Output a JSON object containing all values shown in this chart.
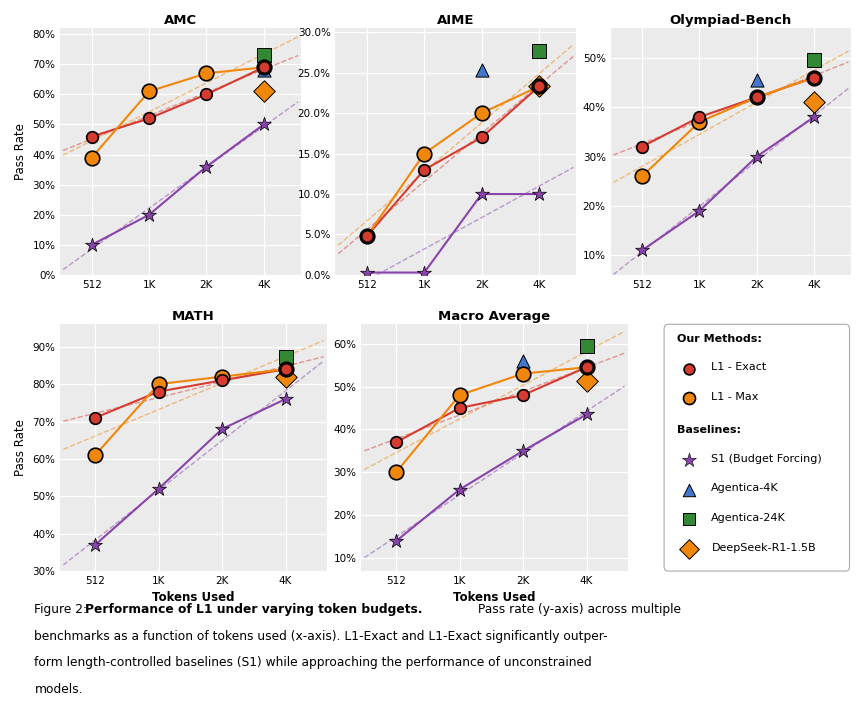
{
  "x_ticks": [
    512,
    1024,
    2048,
    4096
  ],
  "x_labels": [
    "512",
    "1K",
    "2K",
    "4K"
  ],
  "subplots": [
    {
      "title": "AMC",
      "ylabel": "Pass Rate",
      "xlabel": "",
      "ylim": [
        0.0,
        0.82
      ],
      "yticks": [
        0.0,
        0.1,
        0.2,
        0.3,
        0.4,
        0.5,
        0.6,
        0.7,
        0.8
      ],
      "ytick_labels": [
        "0%",
        "10%",
        "20%",
        "30%",
        "40%",
        "50%",
        "60%",
        "70%",
        "80%"
      ],
      "l1_exact": {
        "x": [
          512,
          1024,
          2048,
          4096
        ],
        "y": [
          0.46,
          0.52,
          0.6,
          0.69
        ]
      },
      "l1_max": {
        "x": [
          512,
          1024,
          2048,
          4096
        ],
        "y": [
          0.39,
          0.61,
          0.67,
          0.69
        ]
      },
      "s1": {
        "x": [
          512,
          1024,
          2048,
          4096
        ],
        "y": [
          0.1,
          0.2,
          0.36,
          0.5
        ]
      },
      "agentica_4k": {
        "x": [
          4096
        ],
        "y": [
          0.68
        ],
        "show": true
      },
      "agentica_24k": {
        "x": [
          4096
        ],
        "y": [
          0.73
        ],
        "show": true
      },
      "deepseek": {
        "x": [
          4096
        ],
        "y": [
          0.61
        ],
        "show": true
      }
    },
    {
      "title": "AIME",
      "ylabel": "",
      "xlabel": "",
      "ylim": [
        0.0,
        0.305
      ],
      "yticks": [
        0.0,
        0.05,
        0.1,
        0.15,
        0.2,
        0.25,
        0.3
      ],
      "ytick_labels": [
        "0.0%",
        "5.0%",
        "10.0%",
        "15.0%",
        "20.0%",
        "25.0%",
        "30.0%"
      ],
      "l1_exact": {
        "x": [
          512,
          1024,
          2048,
          4096
        ],
        "y": [
          0.048,
          0.13,
          0.17,
          0.233
        ]
      },
      "l1_max": {
        "x": [
          512,
          1024,
          2048,
          4096
        ],
        "y": [
          0.048,
          0.15,
          0.2,
          0.233
        ]
      },
      "s1": {
        "x": [
          512,
          1024,
          2048,
          4096
        ],
        "y": [
          0.003,
          0.003,
          0.1,
          0.1
        ]
      },
      "agentica_4k": {
        "x": [
          2048
        ],
        "y": [
          0.253
        ],
        "show": true
      },
      "agentica_24k": {
        "x": [
          4096
        ],
        "y": [
          0.277
        ],
        "show": true
      },
      "deepseek": {
        "x": [
          4096
        ],
        "y": [
          0.233
        ],
        "show": true
      }
    },
    {
      "title": "Olympiad-Bench",
      "ylabel": "",
      "xlabel": "",
      "ylim": [
        0.06,
        0.56
      ],
      "yticks": [
        0.1,
        0.2,
        0.3,
        0.4,
        0.5
      ],
      "ytick_labels": [
        "10%",
        "20%",
        "30%",
        "40%",
        "50%"
      ],
      "l1_exact": {
        "x": [
          512,
          1024,
          2048,
          4096
        ],
        "y": [
          0.32,
          0.38,
          0.42,
          0.46
        ]
      },
      "l1_max": {
        "x": [
          512,
          1024,
          2048,
          4096
        ],
        "y": [
          0.26,
          0.37,
          0.42,
          0.46
        ]
      },
      "s1": {
        "x": [
          512,
          1024,
          2048,
          4096
        ],
        "y": [
          0.11,
          0.19,
          0.3,
          0.38
        ]
      },
      "agentica_4k": {
        "x": [
          2048
        ],
        "y": [
          0.455
        ],
        "show": true
      },
      "agentica_24k": {
        "x": [
          4096
        ],
        "y": [
          0.495
        ],
        "show": true
      },
      "deepseek": {
        "x": [
          4096
        ],
        "y": [
          0.41
        ],
        "show": true
      }
    },
    {
      "title": "MATH",
      "ylabel": "Pass Rate",
      "xlabel": "Tokens Used",
      "ylim": [
        0.3,
        0.96
      ],
      "yticks": [
        0.3,
        0.4,
        0.5,
        0.6,
        0.7,
        0.8,
        0.9
      ],
      "ytick_labels": [
        "30%",
        "40%",
        "50%",
        "60%",
        "70%",
        "80%",
        "90%"
      ],
      "l1_exact": {
        "x": [
          512,
          1024,
          2048,
          4096
        ],
        "y": [
          0.71,
          0.78,
          0.81,
          0.84
        ]
      },
      "l1_max": {
        "x": [
          512,
          1024,
          2048,
          4096
        ],
        "y": [
          0.61,
          0.8,
          0.82,
          0.84
        ]
      },
      "s1": {
        "x": [
          512,
          1024,
          2048,
          4096
        ],
        "y": [
          0.37,
          0.52,
          0.68,
          0.76
        ]
      },
      "agentica_4k": {
        "x": [
          4096
        ],
        "y": [
          0.0
        ],
        "show": false
      },
      "agentica_24k": {
        "x": [
          4096
        ],
        "y": [
          0.872
        ],
        "show": true
      },
      "deepseek": {
        "x": [
          4096
        ],
        "y": [
          0.82
        ],
        "show": true
      }
    },
    {
      "title": "Macro Average",
      "ylabel": "",
      "xlabel": "Tokens Used",
      "ylim": [
        0.07,
        0.645
      ],
      "yticks": [
        0.1,
        0.2,
        0.3,
        0.4,
        0.5,
        0.6
      ],
      "ytick_labels": [
        "10%",
        "20%",
        "30%",
        "40%",
        "50%",
        "60%"
      ],
      "l1_exact": {
        "x": [
          512,
          1024,
          2048,
          4096
        ],
        "y": [
          0.37,
          0.45,
          0.48,
          0.545
        ]
      },
      "l1_max": {
        "x": [
          512,
          1024,
          2048,
          4096
        ],
        "y": [
          0.3,
          0.48,
          0.53,
          0.545
        ]
      },
      "s1": {
        "x": [
          512,
          1024,
          2048,
          4096
        ],
        "y": [
          0.14,
          0.26,
          0.35,
          0.435
        ]
      },
      "agentica_4k": {
        "x": [
          2048
        ],
        "y": [
          0.56
        ],
        "show": true
      },
      "agentica_24k": {
        "x": [
          4096
        ],
        "y": [
          0.595
        ],
        "show": true
      },
      "deepseek": {
        "x": [
          4096
        ],
        "y": [
          0.512
        ],
        "show": true
      }
    }
  ],
  "colors": {
    "l1_exact": "#d63b2f",
    "l1_max": "#f0870a",
    "s1": "#8844aa",
    "agentica_4k": "#4477cc",
    "agentica_24k": "#338833",
    "deepseek": "#f0870a"
  },
  "bg_color": "#ebebeb",
  "caption_bold": "Performance of L1 under varying token budgets.",
  "caption_rest": " Pass rate (y-axis) across multiple benchmarks as a function of tokens used (x-axis). L1-Exact and L1-Exact significantly outperform length-controlled baselines (S1) while approaching the performance of unconstrained models."
}
